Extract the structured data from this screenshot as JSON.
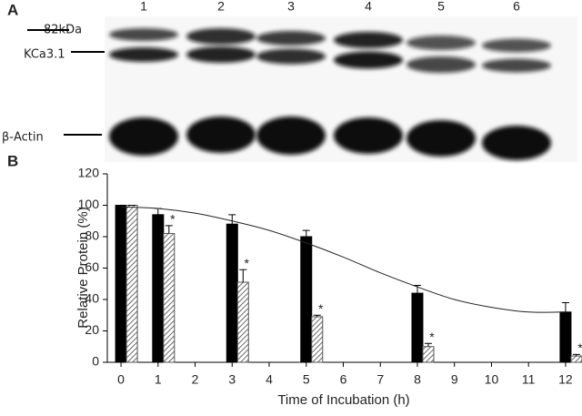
{
  "blot": {
    "panel": "A",
    "lanes": [
      "1",
      "2",
      "3",
      "4",
      "5",
      "6"
    ],
    "labels": [
      "82kDa",
      "KCa3.1",
      "β-Actin"
    ]
  },
  "chart_data": {
    "type": "bar",
    "panel": "B",
    "x_label": "Time of Incubation (h)",
    "y_label": "Relative Protein (%)",
    "x": [
      0,
      1,
      3,
      5,
      8,
      12
    ],
    "series": [
      {
        "color": "#000000",
        "values": [
          100,
          94,
          88,
          80,
          44,
          32
        ],
        "errors": [
          0,
          4,
          6,
          4,
          5,
          6
        ]
      },
      {
        "color": "#555555",
        "pattern": "hatch",
        "values": [
          100,
          82,
          51,
          29,
          10,
          4
        ],
        "errors": [
          0,
          5,
          8,
          1,
          2,
          1
        ]
      }
    ],
    "annotations": [
      {
        "x": 1,
        "text": "*"
      },
      {
        "x": 3,
        "text": "*"
      },
      {
        "x": 5,
        "text": "*"
      },
      {
        "x": 8,
        "text": "*"
      },
      {
        "x": 12,
        "text": "*"
      }
    ],
    "fit": {
      "x": [
        0,
        1,
        2,
        3,
        4,
        5,
        6,
        7,
        8,
        9,
        10,
        11,
        12
      ],
      "values": [
        99,
        98,
        95,
        90,
        84,
        76,
        67,
        57,
        48,
        40,
        35,
        32,
        32
      ]
    },
    "xlim": [
      -0.37,
      12.37
    ],
    "xticks": [
      0,
      1,
      2,
      3,
      4,
      5,
      6,
      7,
      8,
      9,
      10,
      11,
      12
    ],
    "ylim": [
      0,
      120
    ],
    "yticks": [
      0,
      20,
      40,
      60,
      80,
      100,
      120
    ]
  }
}
